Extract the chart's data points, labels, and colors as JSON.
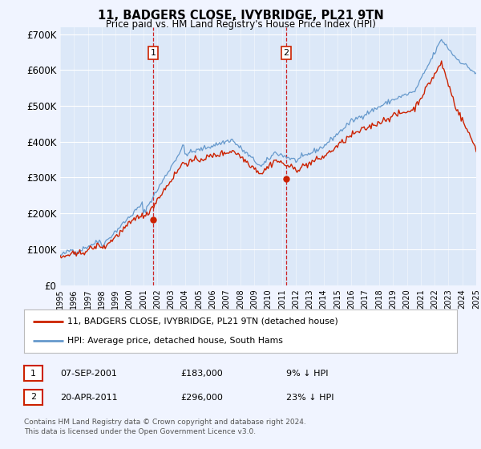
{
  "title": "11, BADGERS CLOSE, IVYBRIDGE, PL21 9TN",
  "subtitle": "Price paid vs. HM Land Registry's House Price Index (HPI)",
  "background_color": "#f0f4ff",
  "plot_bg_color": "#dce8f8",
  "ylim": [
    0,
    720000
  ],
  "yticks": [
    0,
    100000,
    200000,
    300000,
    400000,
    500000,
    600000,
    700000
  ],
  "ytick_labels": [
    "£0",
    "£100K",
    "£200K",
    "£300K",
    "£400K",
    "£500K",
    "£600K",
    "£700K"
  ],
  "hpi_color": "#6699cc",
  "price_color": "#cc2200",
  "purchase1_year": 2001.708,
  "purchase1_price": 183000,
  "purchase2_year": 2011.292,
  "purchase2_price": 296000,
  "legend1_label": "11, BADGERS CLOSE, IVYBRIDGE, PL21 9TN (detached house)",
  "legend2_label": "HPI: Average price, detached house, South Hams",
  "table_row1": [
    "1",
    "07-SEP-2001",
    "£183,000",
    "9% ↓ HPI"
  ],
  "table_row2": [
    "2",
    "20-APR-2011",
    "£296,000",
    "23% ↓ HPI"
  ],
  "footer": "Contains HM Land Registry data © Crown copyright and database right 2024.\nThis data is licensed under the Open Government Licence v3.0.",
  "xstart": 1995,
  "xend": 2025
}
